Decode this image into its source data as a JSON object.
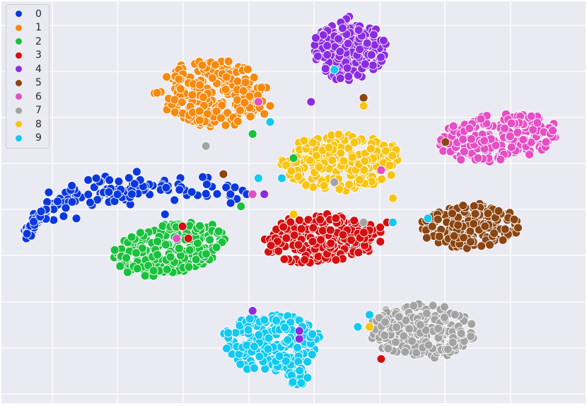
{
  "chart_data": {
    "type": "scatter",
    "title": "",
    "xlabel": "",
    "ylabel": "",
    "xlim": [
      0,
      100
    ],
    "ylim": [
      0,
      100
    ],
    "grid": true,
    "background": "#eaeaf2",
    "legend_position": "top-left",
    "series": [
      {
        "name": "0",
        "color": "#0a38e0",
        "clusters": [
          {
            "shape": "arc",
            "x": 4,
            "y": 42,
            "cx": 33,
            "cy": 55,
            "spread": 1.6,
            "n": 170
          }
        ],
        "strays": [
          [
            28,
            47
          ],
          [
            42,
            52
          ],
          [
            45,
            52
          ]
        ]
      },
      {
        "name": "1",
        "color": "#f58a0f",
        "clusters": [
          {
            "shape": "blob",
            "cx": 36,
            "cy": 77,
            "rx": 10,
            "ry": 9,
            "rot": -12,
            "n": 230
          }
        ],
        "strays": [
          [
            46,
            74
          ],
          [
            45,
            72
          ]
        ]
      },
      {
        "name": "2",
        "color": "#1ac13c",
        "clusters": [
          {
            "shape": "blob",
            "cx": 29,
            "cy": 38.5,
            "rx": 11,
            "ry": 6.5,
            "rot": 20,
            "n": 230
          }
        ],
        "strays": [
          [
            50,
            61
          ],
          [
            43,
            67
          ],
          [
            41,
            49
          ]
        ]
      },
      {
        "name": "3",
        "color": "#d50f10",
        "clusters": [
          {
            "shape": "blob",
            "cx": 55,
            "cy": 41,
            "rx": 11,
            "ry": 6.5,
            "rot": 8,
            "n": 240
          }
        ],
        "strays": [
          [
            31,
            44
          ],
          [
            66,
            45
          ],
          [
            32,
            41
          ],
          [
            65,
            11
          ]
        ]
      },
      {
        "name": "4",
        "color": "#8b2be2",
        "clusters": [
          {
            "shape": "blob",
            "cx": 59.5,
            "cy": 88,
            "rx": 6.5,
            "ry": 8.5,
            "rot": 0,
            "n": 210
          }
        ],
        "strays": [
          [
            53,
            75
          ],
          [
            43,
            23
          ],
          [
            51,
            16
          ],
          [
            51,
            18
          ],
          [
            45,
            52
          ]
        ]
      },
      {
        "name": "5",
        "color": "#8b4511",
        "clusters": [
          {
            "shape": "blob",
            "cx": 80,
            "cy": 44,
            "rx": 9,
            "ry": 6,
            "rot": 5,
            "n": 190
          }
        ],
        "strays": [
          [
            62,
            76
          ],
          [
            38,
            57
          ],
          [
            76,
            65
          ]
        ]
      },
      {
        "name": "6",
        "color": "#e54ec4",
        "clusters": [
          {
            "shape": "blob",
            "cx": 85,
            "cy": 66,
            "rx": 11,
            "ry": 6.5,
            "rot": 10,
            "n": 210
          }
        ],
        "strays": [
          [
            43,
            52
          ],
          [
            30,
            41
          ],
          [
            65,
            58
          ],
          [
            44,
            75
          ]
        ]
      },
      {
        "name": "7",
        "color": "#a3a3a3",
        "clusters": [
          {
            "shape": "blob",
            "cx": 72,
            "cy": 18,
            "rx": 9.5,
            "ry": 7,
            "rot": -10,
            "n": 220
          }
        ],
        "strays": [
          [
            35,
            64
          ],
          [
            62,
            45
          ],
          [
            57,
            55
          ]
        ]
      },
      {
        "name": "8",
        "color": "#f9c410",
        "clusters": [
          {
            "shape": "blob",
            "cx": 58,
            "cy": 60,
            "rx": 11,
            "ry": 7.5,
            "rot": 6,
            "n": 230
          }
        ],
        "strays": [
          [
            62,
            74
          ],
          [
            67,
            51
          ],
          [
            63,
            19
          ],
          [
            50,
            47
          ]
        ]
      },
      {
        "name": "9",
        "color": "#11c9f1",
        "clusters": [
          {
            "shape": "blob",
            "cx": 46,
            "cy": 15,
            "rx": 9,
            "ry": 7.5,
            "rot": 10,
            "n": 210
          },
          {
            "shape": "blob",
            "cx": 51,
            "cy": 6.5,
            "rx": 2.2,
            "ry": 2.2,
            "rot": 0,
            "n": 20
          }
        ],
        "strays": [
          [
            57,
            83
          ],
          [
            44,
            56
          ],
          [
            48,
            56
          ],
          [
            73,
            46
          ],
          [
            67,
            45
          ],
          [
            61,
            19
          ],
          [
            46,
            70
          ],
          [
            63,
            22
          ]
        ]
      }
    ]
  }
}
